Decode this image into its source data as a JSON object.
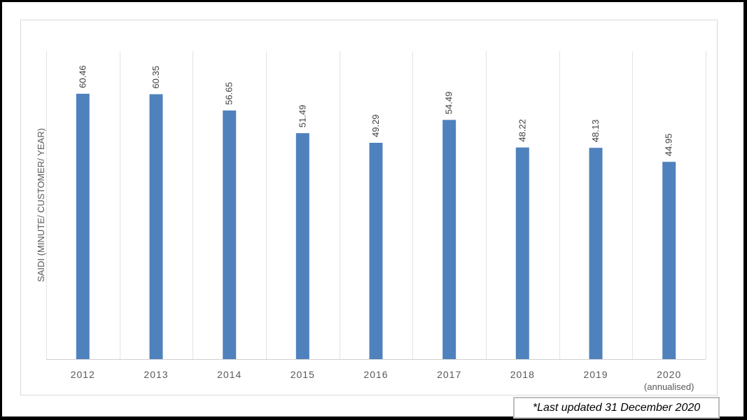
{
  "chart_data": {
    "type": "bar",
    "title": "",
    "xlabel": "",
    "ylabel": "SAIDI (MINUTE/ CUSTOMER/ YEAR)",
    "categories": [
      "2012",
      "2013",
      "2014",
      "2015",
      "2016",
      "2017",
      "2018",
      "2019",
      "2020"
    ],
    "category_sublabels": [
      "",
      "",
      "",
      "",
      "",
      "",
      "",
      "",
      "(annualised)"
    ],
    "values": [
      60.46,
      60.35,
      56.65,
      51.49,
      49.29,
      54.49,
      48.22,
      48.13,
      44.95
    ],
    "value_labels": [
      "60.46",
      "60.35",
      "56.65",
      "51.49",
      "49.29",
      "54.49",
      "48.22",
      "48.13",
      "44.95"
    ],
    "ylim": [
      0,
      70
    ],
    "grid": "vertical",
    "legend": "none",
    "bar_color": "#4f81bd"
  },
  "footnote": "*Last updated 31 December 2020"
}
